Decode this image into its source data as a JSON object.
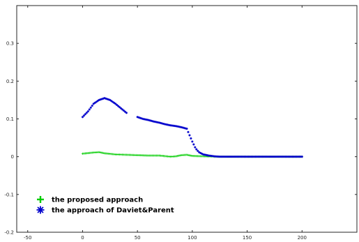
{
  "chart_data": {
    "type": "scatter",
    "title": "",
    "xlabel": "",
    "ylabel": "",
    "xlim": [
      -60,
      250
    ],
    "ylim": [
      -0.2,
      0.4
    ],
    "xticks": [
      -50,
      0,
      50,
      100,
      150,
      200
    ],
    "yticks": [
      -0.2,
      -0.1,
      0,
      0.1,
      0.2,
      0.3
    ],
    "xtick_labels": [
      "-50",
      "0",
      "50",
      "100",
      "150",
      "200"
    ],
    "ytick_labels": [
      "-0.2",
      "-0.1",
      "0",
      "0.1",
      "0.2",
      "0.3"
    ],
    "grid": false,
    "legend_position": "bottom-left",
    "series": [
      {
        "name": "the proposed approach",
        "marker": "plus",
        "color": "#00cc00",
        "x": [
          0,
          10,
          15,
          20,
          30,
          40,
          50,
          60,
          70,
          80,
          85,
          90,
          95,
          100,
          110,
          120,
          130,
          140,
          150,
          160,
          170,
          180,
          190,
          200
        ],
        "y": [
          0.008,
          0.011,
          0.012,
          0.009,
          0.006,
          0.005,
          0.004,
          0.003,
          0.003,
          0.0,
          0.001,
          0.004,
          0.005,
          0.002,
          0.001,
          0.0,
          0.0,
          0.0,
          0.0,
          0.0,
          0.0,
          0.0,
          0.0,
          0.0
        ]
      },
      {
        "name": "the approach of Daviet&Parent",
        "marker": "star",
        "color": "#0000cc",
        "x": [
          0,
          5,
          10,
          15,
          20,
          25,
          30,
          35,
          40,
          50,
          55,
          60,
          65,
          70,
          75,
          80,
          85,
          90,
          95,
          97,
          100,
          103,
          106,
          110,
          115,
          120,
          125,
          130,
          140,
          150,
          160,
          170,
          180,
          190,
          200
        ],
        "y": [
          0.105,
          0.12,
          0.14,
          0.15,
          0.155,
          0.15,
          0.14,
          0.128,
          0.116,
          0.105,
          0.1,
          0.097,
          0.093,
          0.09,
          0.086,
          0.083,
          0.081,
          0.078,
          0.074,
          0.06,
          0.04,
          0.022,
          0.012,
          0.006,
          0.003,
          0.001,
          0.0,
          0.0,
          0.0,
          0.0,
          0.0,
          0.0,
          0.0,
          0.0,
          0.0
        ]
      }
    ]
  }
}
